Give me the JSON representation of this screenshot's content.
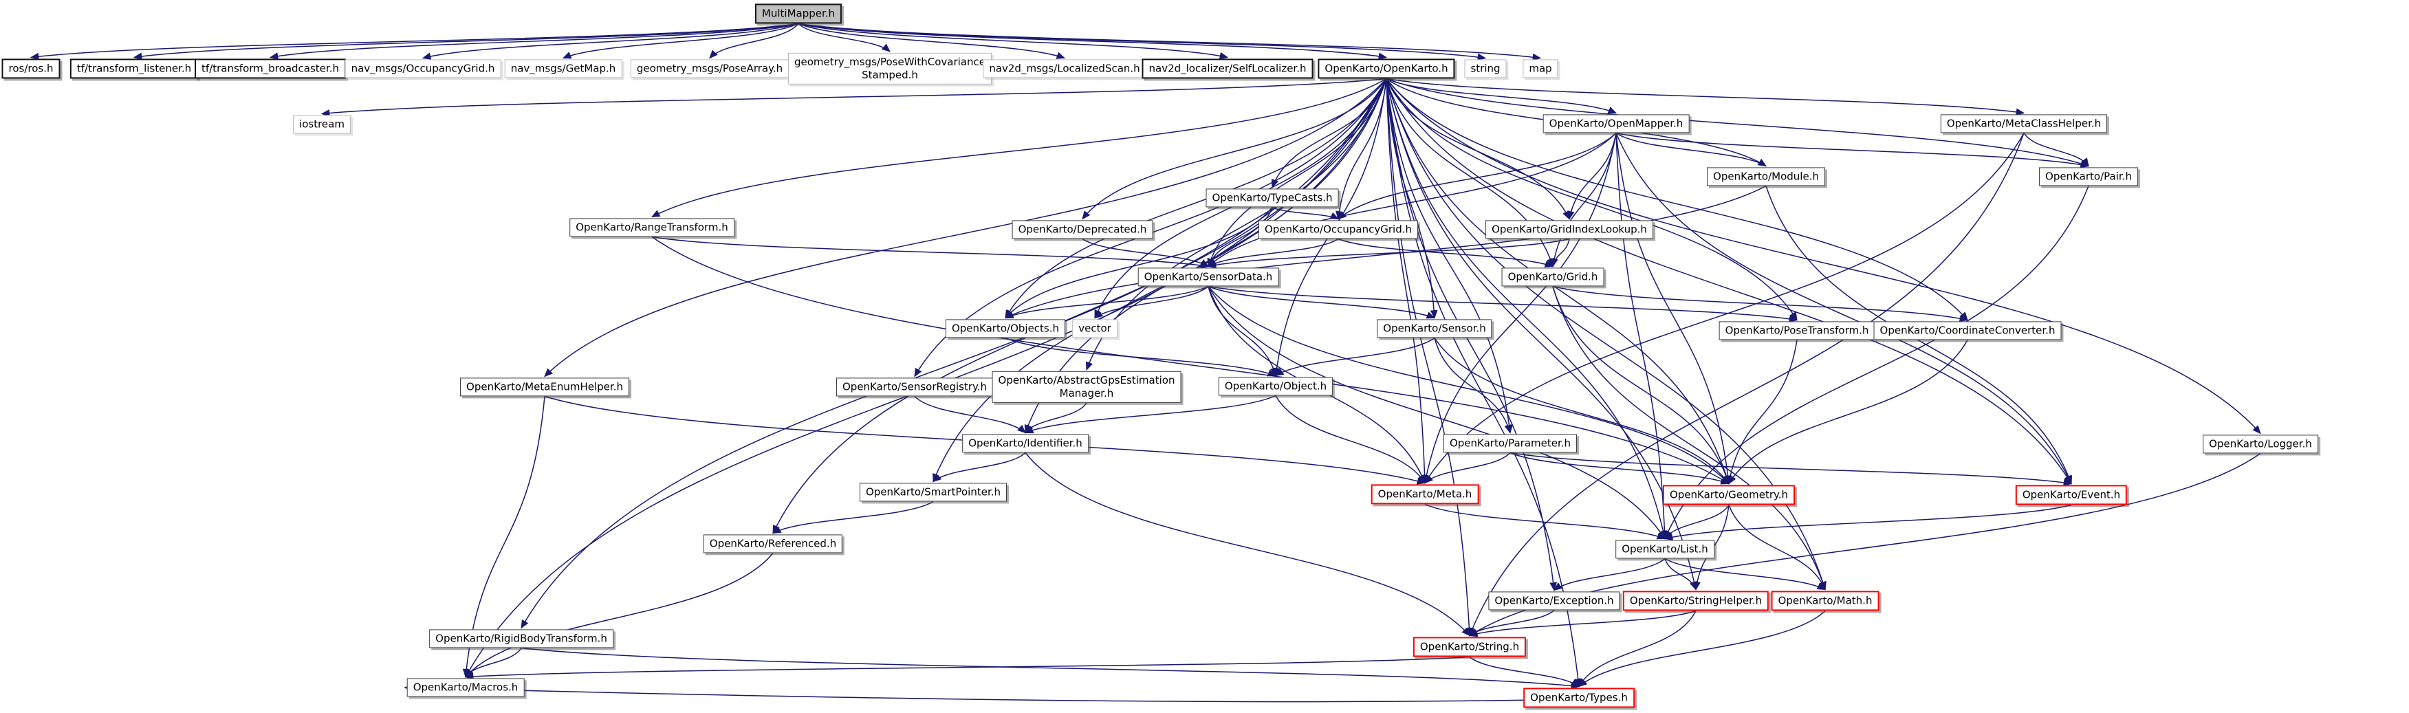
{
  "diagram": {
    "kind": "include-dependency-graph",
    "root_file": "MultiMapper.h",
    "colors": {
      "edge": "#191970",
      "root_fill": "#bfbfbf",
      "node_border": "#3c3c3c",
      "truncated_border": "#ff0000",
      "external_border": "#b9b9b9",
      "background": "#ffffff"
    },
    "nodes": [
      {
        "id": "multimapper",
        "label": "MultiMapper.h",
        "style": "root",
        "interactable": false
      },
      {
        "id": "ros",
        "label": "ros/ros.h",
        "style": "strong",
        "interactable": true
      },
      {
        "id": "tf_listener",
        "label": "tf/transform_listener.h",
        "style": "strong",
        "interactable": true
      },
      {
        "id": "tf_broadcaster",
        "label": "tf/transform_broadcaster.h",
        "style": "strong",
        "interactable": true
      },
      {
        "id": "nav_occupancygrid",
        "label": "nav_msgs/OccupancyGrid.h",
        "style": "ext",
        "interactable": false
      },
      {
        "id": "nav_getmap",
        "label": "nav_msgs/GetMap.h",
        "style": "ext",
        "interactable": false
      },
      {
        "id": "posearray",
        "label": "geometry_msgs/PoseArray.h",
        "style": "ext",
        "interactable": false
      },
      {
        "id": "posewithcov",
        "label": "geometry_msgs/PoseWithCovariance\nStamped.h",
        "style": "ext",
        "interactable": false
      },
      {
        "id": "localizedscan",
        "label": "nav2d_msgs/LocalizedScan.h",
        "style": "ext",
        "interactable": false
      },
      {
        "id": "selflocalizer",
        "label": "nav2d_localizer/SelfLocalizer.h",
        "style": "strong",
        "interactable": true
      },
      {
        "id": "openkarto",
        "label": "OpenKarto/OpenKarto.h",
        "style": "strong",
        "interactable": true
      },
      {
        "id": "string",
        "label": "string",
        "style": "ext",
        "interactable": false
      },
      {
        "id": "map",
        "label": "map",
        "style": "ext",
        "interactable": false
      },
      {
        "id": "iostream",
        "label": "iostream",
        "style": "ext",
        "interactable": false
      },
      {
        "id": "openmapper",
        "label": "OpenKarto/OpenMapper.h",
        "style": "plain",
        "interactable": true
      },
      {
        "id": "metaclasshelper",
        "label": "OpenKarto/MetaClassHelper.h",
        "style": "plain",
        "interactable": true
      },
      {
        "id": "typecasts",
        "label": "OpenKarto/TypeCasts.h",
        "style": "plain",
        "interactable": true
      },
      {
        "id": "module",
        "label": "OpenKarto/Module.h",
        "style": "plain",
        "interactable": true
      },
      {
        "id": "pair",
        "label": "OpenKarto/Pair.h",
        "style": "plain",
        "interactable": true
      },
      {
        "id": "rangetransform",
        "label": "OpenKarto/RangeTransform.h",
        "style": "plain",
        "interactable": true
      },
      {
        "id": "deprecated",
        "label": "OpenKarto/Deprecated.h",
        "style": "plain",
        "interactable": true
      },
      {
        "id": "occupancygrid",
        "label": "OpenKarto/OccupancyGrid.h",
        "style": "plain",
        "interactable": true
      },
      {
        "id": "gridindexlookup",
        "label": "OpenKarto/GridIndexLookup.h",
        "style": "plain",
        "interactable": true
      },
      {
        "id": "sensordata",
        "label": "OpenKarto/SensorData.h",
        "style": "plain",
        "interactable": true
      },
      {
        "id": "grid",
        "label": "OpenKarto/Grid.h",
        "style": "plain",
        "interactable": true
      },
      {
        "id": "objects",
        "label": "OpenKarto/Objects.h",
        "style": "plain",
        "interactable": true
      },
      {
        "id": "vector",
        "label": "vector",
        "style": "ext",
        "interactable": false
      },
      {
        "id": "sensor",
        "label": "OpenKarto/Sensor.h",
        "style": "plain",
        "interactable": true
      },
      {
        "id": "posetransform",
        "label": "OpenKarto/PoseTransform.h",
        "style": "plain",
        "interactable": true
      },
      {
        "id": "coordinateconverter",
        "label": "OpenKarto/CoordinateConverter.h",
        "style": "plain",
        "interactable": true
      },
      {
        "id": "metaenumhelper",
        "label": "OpenKarto/MetaEnumHelper.h",
        "style": "plain",
        "interactable": true
      },
      {
        "id": "sensorregistry",
        "label": "OpenKarto/SensorRegistry.h",
        "style": "plain",
        "interactable": true
      },
      {
        "id": "abstractgps",
        "label": "OpenKarto/AbstractGpsEstimation\nManager.h",
        "style": "plain",
        "interactable": true
      },
      {
        "id": "object",
        "label": "OpenKarto/Object.h",
        "style": "plain",
        "interactable": true
      },
      {
        "id": "identifier",
        "label": "OpenKarto/Identifier.h",
        "style": "plain",
        "interactable": true
      },
      {
        "id": "parameter",
        "label": "OpenKarto/Parameter.h",
        "style": "plain",
        "interactable": true
      },
      {
        "id": "logger",
        "label": "OpenKarto/Logger.h",
        "style": "plain",
        "interactable": true
      },
      {
        "id": "smartpointer",
        "label": "OpenKarto/SmartPointer.h",
        "style": "plain",
        "interactable": true
      },
      {
        "id": "meta",
        "label": "OpenKarto/Meta.h",
        "style": "red",
        "interactable": true
      },
      {
        "id": "geometry",
        "label": "OpenKarto/Geometry.h",
        "style": "red",
        "interactable": true
      },
      {
        "id": "event",
        "label": "OpenKarto/Event.h",
        "style": "red",
        "interactable": true
      },
      {
        "id": "referenced",
        "label": "OpenKarto/Referenced.h",
        "style": "plain",
        "interactable": true
      },
      {
        "id": "list",
        "label": "OpenKarto/List.h",
        "style": "plain",
        "interactable": true
      },
      {
        "id": "exception",
        "label": "OpenKarto/Exception.h",
        "style": "plain",
        "interactable": true
      },
      {
        "id": "stringhelper",
        "label": "OpenKarto/StringHelper.h",
        "style": "red",
        "interactable": true
      },
      {
        "id": "math",
        "label": "OpenKarto/Math.h",
        "style": "red",
        "interactable": true
      },
      {
        "id": "rigidbody",
        "label": "OpenKarto/RigidBodyTransform.h",
        "style": "plain",
        "interactable": true
      },
      {
        "id": "string_h",
        "label": "OpenKarto/String.h",
        "style": "red",
        "interactable": true
      },
      {
        "id": "macros",
        "label": "OpenKarto/Macros.h",
        "style": "plain",
        "interactable": true
      },
      {
        "id": "types",
        "label": "OpenKarto/Types.h",
        "style": "red",
        "interactable": true
      }
    ],
    "edges": [
      [
        "multimapper",
        "ros"
      ],
      [
        "multimapper",
        "tf_listener"
      ],
      [
        "multimapper",
        "tf_broadcaster"
      ],
      [
        "multimapper",
        "nav_occupancygrid"
      ],
      [
        "multimapper",
        "nav_getmap"
      ],
      [
        "multimapper",
        "posearray"
      ],
      [
        "multimapper",
        "posewithcov"
      ],
      [
        "multimapper",
        "localizedscan"
      ],
      [
        "multimapper",
        "selflocalizer"
      ],
      [
        "multimapper",
        "openkarto"
      ],
      [
        "multimapper",
        "string"
      ],
      [
        "multimapper",
        "map"
      ],
      [
        "openkarto",
        "iostream"
      ],
      [
        "openkarto",
        "openmapper"
      ],
      [
        "openkarto",
        "metaclasshelper"
      ],
      [
        "openkarto",
        "typecasts"
      ],
      [
        "openkarto",
        "module"
      ],
      [
        "openkarto",
        "pair"
      ],
      [
        "openkarto",
        "rangetransform"
      ],
      [
        "openkarto",
        "deprecated"
      ],
      [
        "openkarto",
        "occupancygrid"
      ],
      [
        "openkarto",
        "gridindexlookup"
      ],
      [
        "openkarto",
        "sensordata"
      ],
      [
        "openkarto",
        "grid"
      ],
      [
        "openkarto",
        "objects"
      ],
      [
        "openkarto",
        "vector"
      ],
      [
        "openkarto",
        "sensor"
      ],
      [
        "openkarto",
        "posetransform"
      ],
      [
        "openkarto",
        "coordinateconverter"
      ],
      [
        "openkarto",
        "metaenumhelper"
      ],
      [
        "openkarto",
        "sensorregistry"
      ],
      [
        "openkarto",
        "abstractgps"
      ],
      [
        "openkarto",
        "object"
      ],
      [
        "openkarto",
        "identifier"
      ],
      [
        "openkarto",
        "parameter"
      ],
      [
        "openkarto",
        "logger"
      ],
      [
        "openkarto",
        "smartpointer"
      ],
      [
        "openkarto",
        "meta"
      ],
      [
        "openkarto",
        "geometry"
      ],
      [
        "openkarto",
        "event"
      ],
      [
        "openkarto",
        "referenced"
      ],
      [
        "openkarto",
        "list"
      ],
      [
        "openkarto",
        "exception"
      ],
      [
        "openkarto",
        "stringhelper"
      ],
      [
        "openkarto",
        "math"
      ],
      [
        "openkarto",
        "rigidbody"
      ],
      [
        "openkarto",
        "string_h"
      ],
      [
        "openkarto",
        "macros"
      ],
      [
        "openkarto",
        "types"
      ],
      [
        "openmapper",
        "module"
      ],
      [
        "openmapper",
        "pair"
      ],
      [
        "openmapper",
        "occupancygrid"
      ],
      [
        "openmapper",
        "gridindexlookup"
      ],
      [
        "openmapper",
        "sensordata"
      ],
      [
        "openmapper",
        "grid"
      ],
      [
        "openmapper",
        "event"
      ],
      [
        "openmapper",
        "geometry"
      ],
      [
        "openmapper",
        "meta"
      ],
      [
        "openmapper",
        "list"
      ],
      [
        "metaclasshelper",
        "pair"
      ],
      [
        "metaclasshelper",
        "meta"
      ],
      [
        "metaclasshelper",
        "string_h"
      ],
      [
        "typecasts",
        "objects"
      ],
      [
        "typecasts",
        "occupancygrid"
      ],
      [
        "typecasts",
        "sensordata"
      ],
      [
        "module",
        "objects"
      ],
      [
        "module",
        "event"
      ],
      [
        "pair",
        "list"
      ],
      [
        "rangetransform",
        "sensordata"
      ],
      [
        "rangetransform",
        "geometry"
      ],
      [
        "deprecated",
        "sensordata"
      ],
      [
        "occupancygrid",
        "grid"
      ],
      [
        "occupancygrid",
        "sensordata"
      ],
      [
        "gridindexlookup",
        "grid"
      ],
      [
        "gridindexlookup",
        "sensordata"
      ],
      [
        "sensordata",
        "objects"
      ],
      [
        "sensordata",
        "vector"
      ],
      [
        "sensordata",
        "sensor"
      ],
      [
        "sensordata",
        "object"
      ],
      [
        "sensordata",
        "posetransform"
      ],
      [
        "sensordata",
        "geometry"
      ],
      [
        "sensordata",
        "list"
      ],
      [
        "sensordata",
        "meta"
      ],
      [
        "grid",
        "coordinateconverter"
      ],
      [
        "grid",
        "geometry"
      ],
      [
        "grid",
        "math"
      ],
      [
        "objects",
        "object"
      ],
      [
        "sensor",
        "object"
      ],
      [
        "sensor",
        "parameter"
      ],
      [
        "sensor",
        "geometry"
      ],
      [
        "posetransform",
        "geometry"
      ],
      [
        "coordinateconverter",
        "geometry"
      ],
      [
        "metaenumhelper",
        "meta"
      ],
      [
        "metaenumhelper",
        "macros"
      ],
      [
        "sensorregistry",
        "identifier"
      ],
      [
        "abstractgps",
        "identifier"
      ],
      [
        "object",
        "identifier"
      ],
      [
        "object",
        "meta"
      ],
      [
        "identifier",
        "smartpointer"
      ],
      [
        "identifier",
        "string_h"
      ],
      [
        "parameter",
        "meta"
      ],
      [
        "parameter",
        "event"
      ],
      [
        "parameter",
        "geometry"
      ],
      [
        "logger",
        "string_h"
      ],
      [
        "smartpointer",
        "referenced"
      ],
      [
        "meta",
        "list"
      ],
      [
        "geometry",
        "list"
      ],
      [
        "geometry",
        "stringhelper"
      ],
      [
        "geometry",
        "math"
      ],
      [
        "event",
        "list"
      ],
      [
        "referenced",
        "macros"
      ],
      [
        "list",
        "exception"
      ],
      [
        "list",
        "stringhelper"
      ],
      [
        "list",
        "math"
      ],
      [
        "exception",
        "string_h"
      ],
      [
        "stringhelper",
        "string_h"
      ],
      [
        "stringhelper",
        "types"
      ],
      [
        "math",
        "types"
      ],
      [
        "rigidbody",
        "macros"
      ],
      [
        "rigidbody",
        "types"
      ],
      [
        "string_h",
        "types"
      ],
      [
        "string_h",
        "macros"
      ],
      [
        "types",
        "macros"
      ]
    ]
  }
}
